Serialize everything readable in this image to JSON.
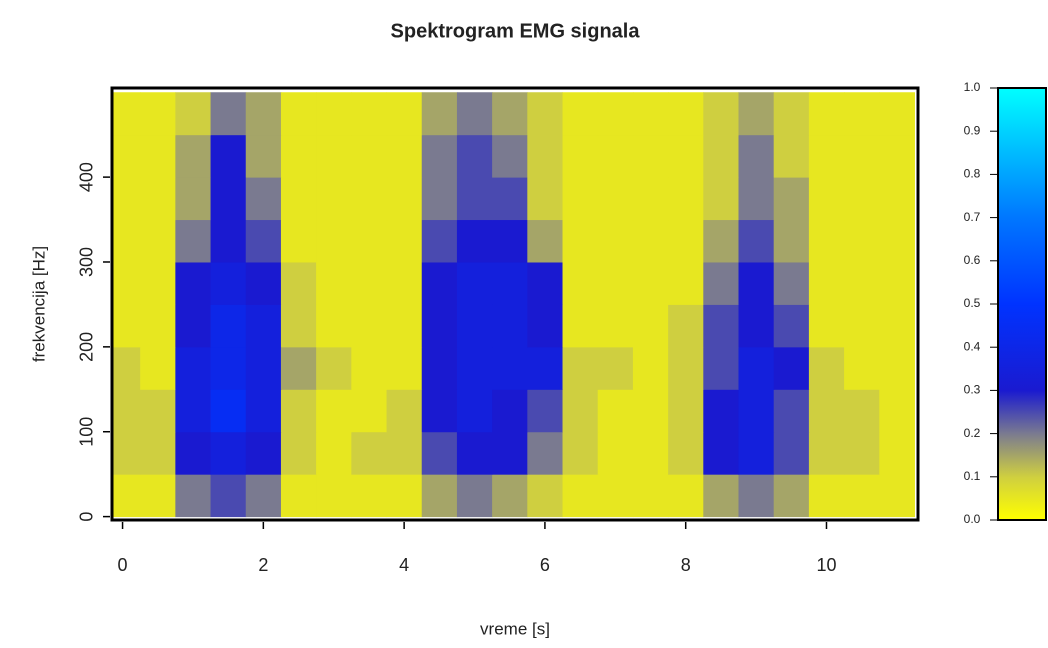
{
  "chart_data": {
    "type": "heatmap",
    "title": "Spektrogram EMG signala",
    "x_label": "vreme [s]",
    "y_label": "frekvencija [Hz]",
    "x": [
      0,
      0.5,
      1,
      1.5,
      2,
      2.5,
      3,
      3.5,
      4,
      4.5,
      5,
      5.5,
      6,
      6.5,
      7,
      7.5,
      8,
      8.5,
      9,
      9.5,
      10,
      10.5,
      11
    ],
    "y": [
      25,
      75,
      125,
      175,
      225,
      275,
      325,
      375,
      425,
      475
    ],
    "z": [
      [
        0.05,
        0.05,
        0.2,
        0.25,
        0.2,
        0.05,
        0.05,
        0.05,
        0.05,
        0.15,
        0.2,
        0.15,
        0.1,
        0.05,
        0.05,
        0.05,
        0.05,
        0.15,
        0.2,
        0.15,
        0.05,
        0.05,
        0.05
      ],
      [
        0.1,
        0.1,
        0.3,
        0.35,
        0.3,
        0.1,
        0.05,
        0.1,
        0.1,
        0.25,
        0.3,
        0.3,
        0.2,
        0.1,
        0.05,
        0.05,
        0.1,
        0.3,
        0.35,
        0.25,
        0.1,
        0.1,
        0.05
      ],
      [
        0.1,
        0.1,
        0.35,
        0.45,
        0.35,
        0.1,
        0.05,
        0.05,
        0.1,
        0.3,
        0.35,
        0.3,
        0.25,
        0.1,
        0.05,
        0.05,
        0.1,
        0.3,
        0.35,
        0.25,
        0.1,
        0.1,
        0.05
      ],
      [
        0.1,
        0.05,
        0.35,
        0.4,
        0.35,
        0.15,
        0.1,
        0.05,
        0.05,
        0.3,
        0.35,
        0.35,
        0.35,
        0.1,
        0.1,
        0.05,
        0.1,
        0.25,
        0.35,
        0.3,
        0.1,
        0.05,
        0.05
      ],
      [
        0.05,
        0.05,
        0.3,
        0.4,
        0.35,
        0.1,
        0.05,
        0.05,
        0.05,
        0.3,
        0.35,
        0.35,
        0.3,
        0.05,
        0.05,
        0.05,
        0.1,
        0.25,
        0.3,
        0.25,
        0.05,
        0.05,
        0.05
      ],
      [
        0.05,
        0.05,
        0.3,
        0.35,
        0.3,
        0.1,
        0.05,
        0.05,
        0.05,
        0.3,
        0.35,
        0.35,
        0.3,
        0.05,
        0.05,
        0.05,
        0.05,
        0.2,
        0.3,
        0.2,
        0.05,
        0.05,
        0.05
      ],
      [
        0.05,
        0.05,
        0.2,
        0.3,
        0.25,
        0.05,
        0.05,
        0.05,
        0.05,
        0.25,
        0.3,
        0.3,
        0.15,
        0.05,
        0.05,
        0.05,
        0.05,
        0.15,
        0.25,
        0.15,
        0.05,
        0.05,
        0.05
      ],
      [
        0.05,
        0.05,
        0.15,
        0.3,
        0.2,
        0.05,
        0.05,
        0.05,
        0.05,
        0.2,
        0.25,
        0.25,
        0.1,
        0.05,
        0.05,
        0.05,
        0.05,
        0.1,
        0.2,
        0.15,
        0.05,
        0.05,
        0.05
      ],
      [
        0.05,
        0.05,
        0.15,
        0.3,
        0.15,
        0.05,
        0.05,
        0.05,
        0.05,
        0.2,
        0.25,
        0.2,
        0.1,
        0.05,
        0.05,
        0.05,
        0.05,
        0.1,
        0.2,
        0.1,
        0.05,
        0.05,
        0.05
      ],
      [
        0.05,
        0.05,
        0.1,
        0.2,
        0.15,
        0.05,
        0.05,
        0.05,
        0.05,
        0.15,
        0.2,
        0.15,
        0.1,
        0.05,
        0.05,
        0.05,
        0.05,
        0.1,
        0.15,
        0.1,
        0.05,
        0.05,
        0.05
      ]
    ],
    "xlim": [
      -0.15,
      11.3
    ],
    "ylim": [
      -4,
      505
    ],
    "zlim": [
      0,
      1
    ],
    "xticks": [
      0,
      2,
      4,
      6,
      8,
      10
    ],
    "yticks": [
      0,
      100,
      200,
      300,
      400
    ],
    "zticks": [
      {
        "value": 0,
        "label": "0.0"
      },
      0.1,
      0.2,
      0.3,
      0.4,
      0.5,
      0.6,
      0.7,
      0.8,
      0.9,
      {
        "value": 1,
        "label": "1.0"
      }
    ],
    "colorscale": [
      [
        0,
        "#ffff00"
      ],
      [
        0.1,
        "#cfcf40"
      ],
      [
        0.2,
        "#7a7a90"
      ],
      [
        0.3,
        "#1a1ad0"
      ],
      [
        0.5,
        "#0033ff"
      ],
      [
        0.7,
        "#0077ff"
      ],
      [
        1,
        "#00ffff"
      ]
    ]
  }
}
